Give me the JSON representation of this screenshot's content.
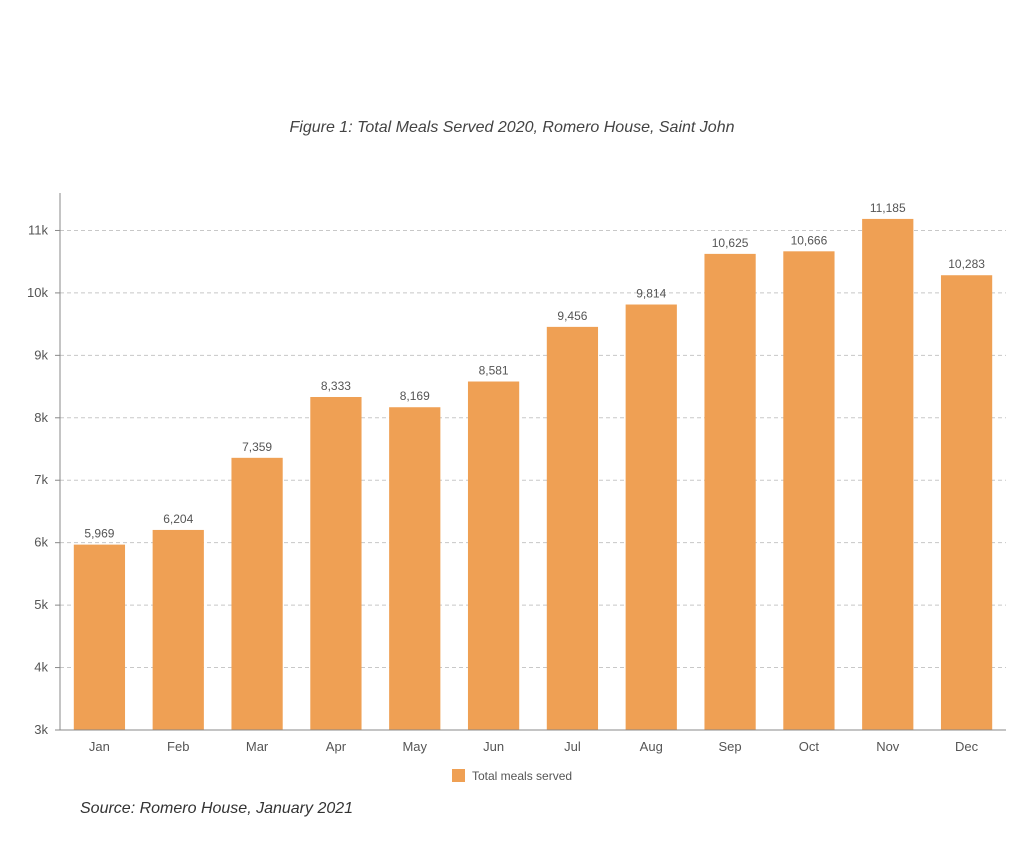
{
  "chart_data": {
    "type": "bar",
    "title": "Figure 1: Total Meals Served 2020, Romero House, Saint John",
    "source": "Source: Romero House, January 2021",
    "categories": [
      "Jan",
      "Feb",
      "Mar",
      "Apr",
      "May",
      "Jun",
      "Jul",
      "Aug",
      "Sep",
      "Oct",
      "Nov",
      "Dec"
    ],
    "series": [
      {
        "name": "Total meals served",
        "color": "#efa054",
        "values": [
          5969,
          6204,
          7359,
          8333,
          8169,
          8581,
          9456,
          9814,
          10625,
          10666,
          11185,
          10283
        ],
        "labels": [
          "5,969",
          "6,204",
          "7,359",
          "8,333",
          "8,169",
          "8,581",
          "9,456",
          "9,814",
          "10,625",
          "10,666",
          "11,185",
          "10,283"
        ]
      }
    ],
    "ylim": [
      3000,
      11600
    ],
    "yticks": [
      3000,
      4000,
      5000,
      6000,
      7000,
      8000,
      9000,
      10000,
      11000
    ],
    "ytick_labels": [
      "3k",
      "4k",
      "5k",
      "6k",
      "7k",
      "8k",
      "9k",
      "10k",
      "11k"
    ],
    "grid": true,
    "grid_color": "#c8c8c8",
    "legend_position": "bottom-center"
  }
}
